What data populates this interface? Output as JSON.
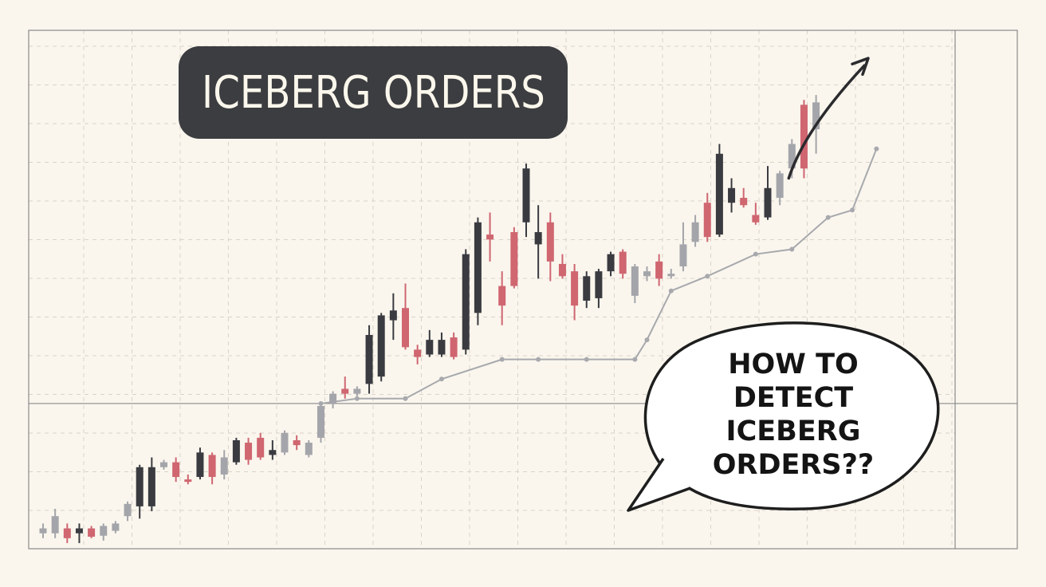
{
  "title": "ICEBERG ORDERS",
  "callout": {
    "lines": [
      "HOW TO",
      "DETECT",
      "ICEBERG",
      "ORDERS??"
    ]
  },
  "colors": {
    "background": "#faf6ee",
    "grid": "#d9d3c8",
    "frame": "#8a8a8a",
    "dark_candle": "#3a3b40",
    "red_candle": "#cf6670",
    "grey_candle": "#a4a5aa",
    "trend_line": "#a8a9ad",
    "title_badge": "#3c3d40",
    "title_text": "#fbf7ec"
  },
  "chart_data": {
    "type": "candlestick",
    "title": "ICEBERG ORDERS",
    "xlabel": "",
    "ylabel": "",
    "grid": true,
    "ylim": [
      0,
      100
    ],
    "horizontal_reference": 29,
    "candles": [
      {
        "o": 2.5,
        "h": 4.5,
        "l": 1.5,
        "c": 3.5,
        "color": "grey"
      },
      {
        "o": 2.5,
        "h": 7.5,
        "l": 1.5,
        "c": 6.0,
        "color": "grey"
      },
      {
        "o": 3.5,
        "h": 4.5,
        "l": 0.5,
        "c": 1.5,
        "color": "red"
      },
      {
        "o": 2.5,
        "h": 4.5,
        "l": 0.5,
        "c": 3.5,
        "color": "dark"
      },
      {
        "o": 3.5,
        "h": 4.0,
        "l": 1.5,
        "c": 1.8,
        "color": "red"
      },
      {
        "o": 2.0,
        "h": 4.5,
        "l": 1.0,
        "c": 4.0,
        "color": "grey"
      },
      {
        "o": 3.0,
        "h": 5.0,
        "l": 2.5,
        "c": 4.5,
        "color": "grey"
      },
      {
        "o": 6.0,
        "h": 9.0,
        "l": 5.0,
        "c": 8.5,
        "color": "grey"
      },
      {
        "o": 8.0,
        "h": 16.5,
        "l": 5.5,
        "c": 16.0,
        "color": "dark"
      },
      {
        "o": 8.0,
        "h": 18.0,
        "l": 7.0,
        "c": 16.0,
        "color": "dark"
      },
      {
        "o": 16.0,
        "h": 17.5,
        "l": 15.5,
        "c": 17.0,
        "color": "grey"
      },
      {
        "o": 17.0,
        "h": 18.0,
        "l": 13.0,
        "c": 14.0,
        "color": "red"
      },
      {
        "o": 13.5,
        "h": 14.5,
        "l": 12.5,
        "c": 13.0,
        "color": "red"
      },
      {
        "o": 14.0,
        "h": 20.0,
        "l": 13.5,
        "c": 19.0,
        "color": "dark"
      },
      {
        "o": 18.5,
        "h": 19.0,
        "l": 12.5,
        "c": 14.0,
        "color": "red"
      },
      {
        "o": 14.5,
        "h": 19.5,
        "l": 13.5,
        "c": 18.0,
        "color": "grey"
      },
      {
        "o": 17.0,
        "h": 22.0,
        "l": 16.5,
        "c": 21.5,
        "color": "dark"
      },
      {
        "o": 21.0,
        "h": 22.0,
        "l": 16.5,
        "c": 17.5,
        "color": "red"
      },
      {
        "o": 18.0,
        "h": 23.0,
        "l": 17.5,
        "c": 22.0,
        "color": "red"
      },
      {
        "o": 19.5,
        "h": 21.5,
        "l": 17.5,
        "c": 18.5,
        "color": "dark"
      },
      {
        "o": 19.0,
        "h": 23.5,
        "l": 18.5,
        "c": 23.0,
        "color": "grey"
      },
      {
        "o": 21.5,
        "h": 22.5,
        "l": 19.5,
        "c": 20.5,
        "color": "red"
      },
      {
        "o": 18.5,
        "h": 21.5,
        "l": 18.0,
        "c": 21.0,
        "color": "grey"
      },
      {
        "o": 22.0,
        "h": 29.0,
        "l": 21.0,
        "c": 28.5,
        "color": "grey"
      },
      {
        "o": 29.0,
        "h": 31.5,
        "l": 28.0,
        "c": 31.0,
        "color": "grey"
      },
      {
        "o": 31.0,
        "h": 34.5,
        "l": 30.0,
        "c": 32.0,
        "color": "red"
      },
      {
        "o": 31.0,
        "h": 32.5,
        "l": 30.5,
        "c": 32.0,
        "color": "grey"
      },
      {
        "o": 33.0,
        "h": 45.0,
        "l": 31.0,
        "c": 43.0,
        "color": "dark"
      },
      {
        "o": 34.5,
        "h": 47.5,
        "l": 33.5,
        "c": 47.0,
        "color": "dark"
      },
      {
        "o": 46.0,
        "h": 51.5,
        "l": 42.0,
        "c": 48.0,
        "color": "dark"
      },
      {
        "o": 48.5,
        "h": 53.5,
        "l": 40.0,
        "c": 40.5,
        "color": "red"
      },
      {
        "o": 40.0,
        "h": 41.0,
        "l": 37.0,
        "c": 38.5,
        "color": "red"
      },
      {
        "o": 39.0,
        "h": 44.0,
        "l": 38.5,
        "c": 42.0,
        "color": "dark"
      },
      {
        "o": 39.0,
        "h": 43.5,
        "l": 38.5,
        "c": 42.0,
        "color": "dark"
      },
      {
        "o": 42.5,
        "h": 43.5,
        "l": 38.0,
        "c": 38.5,
        "color": "red"
      },
      {
        "o": 40.0,
        "h": 60.5,
        "l": 39.0,
        "c": 59.5,
        "color": "dark"
      },
      {
        "o": 47.5,
        "h": 67.0,
        "l": 45.0,
        "c": 66.0,
        "color": "dark"
      },
      {
        "o": 63.5,
        "h": 68.0,
        "l": 58.0,
        "c": 62.5,
        "color": "red"
      },
      {
        "o": 53.0,
        "h": 56.0,
        "l": 45.0,
        "c": 49.0,
        "color": "red"
      },
      {
        "o": 64.0,
        "h": 65.0,
        "l": 52.5,
        "c": 53.0,
        "color": "red"
      },
      {
        "o": 66.0,
        "h": 78.0,
        "l": 63.0,
        "c": 77.0,
        "color": "dark"
      },
      {
        "o": 61.5,
        "h": 69.5,
        "l": 54.5,
        "c": 64.0,
        "color": "dark"
      },
      {
        "o": 66.0,
        "h": 68.0,
        "l": 54.0,
        "c": 58.0,
        "color": "red"
      },
      {
        "o": 57.5,
        "h": 59.5,
        "l": 54.5,
        "c": 55.0,
        "color": "red"
      },
      {
        "o": 56.0,
        "h": 57.5,
        "l": 46.0,
        "c": 49.0,
        "color": "red"
      },
      {
        "o": 50.0,
        "h": 56.0,
        "l": 48.5,
        "c": 55.0,
        "color": "dark"
      },
      {
        "o": 50.5,
        "h": 56.5,
        "l": 48.5,
        "c": 56.0,
        "color": "dark"
      },
      {
        "o": 56.0,
        "h": 60.0,
        "l": 55.0,
        "c": 59.5,
        "color": "dark"
      },
      {
        "o": 60.0,
        "h": 60.5,
        "l": 54.5,
        "c": 55.5,
        "color": "red"
      },
      {
        "o": 51.0,
        "h": 57.5,
        "l": 49.5,
        "c": 57.0,
        "color": "grey"
      },
      {
        "o": 55.0,
        "h": 57.0,
        "l": 54.0,
        "c": 56.0,
        "color": "grey"
      },
      {
        "o": 58.0,
        "h": 59.5,
        "l": 53.0,
        "c": 54.5,
        "color": "red"
      },
      {
        "o": 55.5,
        "h": 56.5,
        "l": 54.5,
        "c": 55.0,
        "color": "grey"
      },
      {
        "o": 57.0,
        "h": 66.0,
        "l": 56.0,
        "c": 61.5,
        "color": "grey"
      },
      {
        "o": 62.0,
        "h": 67.5,
        "l": 61.0,
        "c": 66.0,
        "color": "grey"
      },
      {
        "o": 63.0,
        "h": 72.0,
        "l": 62.0,
        "c": 70.0,
        "color": "red"
      },
      {
        "o": 63.5,
        "h": 82.0,
        "l": 63.0,
        "c": 80.0,
        "color": "dark"
      },
      {
        "o": 70.0,
        "h": 75.0,
        "l": 68.0,
        "c": 73.0,
        "color": "dark"
      },
      {
        "o": 71.0,
        "h": 73.0,
        "l": 69.0,
        "c": 69.5,
        "color": "red"
      },
      {
        "o": 67.5,
        "h": 70.0,
        "l": 65.5,
        "c": 66.0,
        "color": "red"
      },
      {
        "o": 67.0,
        "h": 77.5,
        "l": 66.5,
        "c": 73.0,
        "color": "dark"
      },
      {
        "o": 71.0,
        "h": 76.5,
        "l": 69.5,
        "c": 76.0,
        "color": "grey"
      },
      {
        "o": 77.0,
        "h": 83.0,
        "l": 75.0,
        "c": 82.0,
        "color": "grey"
      },
      {
        "o": 90.0,
        "h": 91.0,
        "l": 75.0,
        "c": 77.0,
        "color": "red"
      },
      {
        "o": 85.0,
        "h": 92.0,
        "l": 80.0,
        "c": 90.5,
        "color": "grey"
      }
    ],
    "trend_line": [
      {
        "x": 23,
        "y": 29.0
      },
      {
        "x": 26,
        "y": 30.0
      },
      {
        "x": 30,
        "y": 30.0
      },
      {
        "x": 33,
        "y": 34.0
      },
      {
        "x": 38,
        "y": 38.0
      },
      {
        "x": 41,
        "y": 38.0
      },
      {
        "x": 45,
        "y": 38.0
      },
      {
        "x": 49,
        "y": 38.0
      },
      {
        "x": 50,
        "y": 42.0
      },
      {
        "x": 52,
        "y": 52.0
      },
      {
        "x": 55,
        "y": 55.0
      },
      {
        "x": 59,
        "y": 59.5
      },
      {
        "x": 62,
        "y": 60.5
      },
      {
        "x": 65,
        "y": 67.0
      },
      {
        "x": 67,
        "y": 68.5
      },
      {
        "x": 69,
        "y": 81.0
      }
    ]
  }
}
